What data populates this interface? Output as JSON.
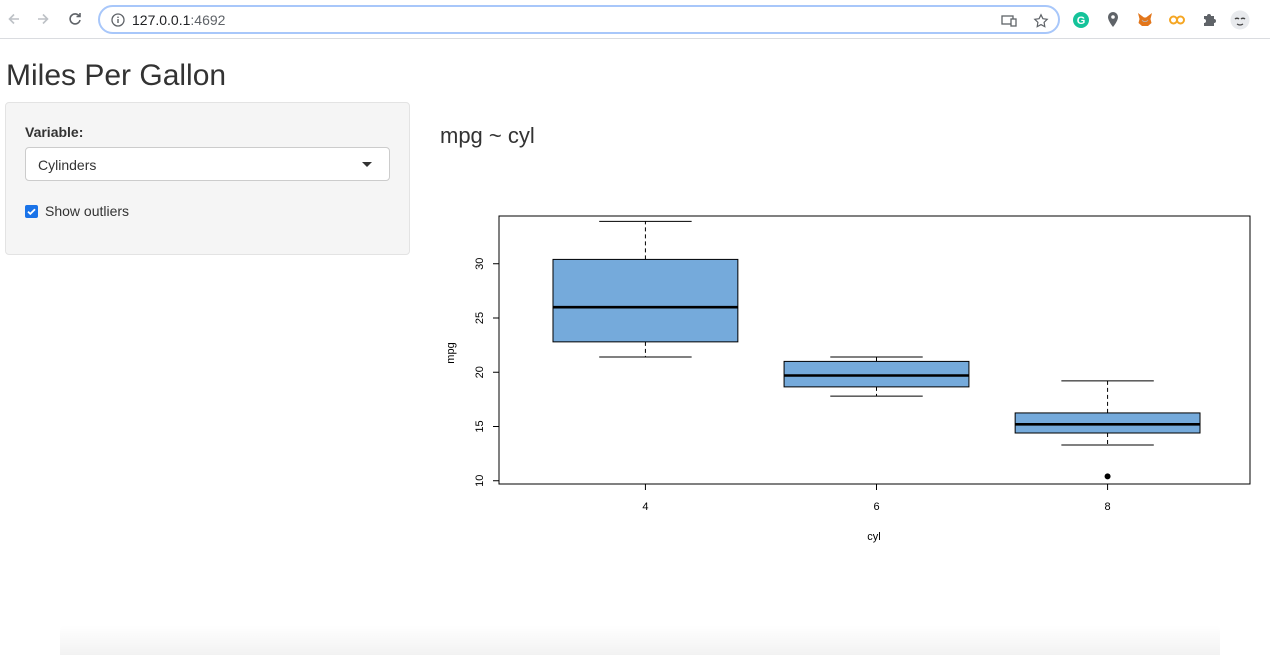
{
  "browser": {
    "url_host": "127.0.0.1",
    "url_port": ":4692",
    "extensions": [
      "grammarly-icon",
      "location-pin-icon",
      "metamask-icon",
      "link-extension-icon",
      "puzzle-icon",
      "profile-icon"
    ]
  },
  "page": {
    "title": "Miles Per Gallon"
  },
  "sidebar": {
    "variable_label": "Variable:",
    "variable_selected": "Cylinders",
    "outliers_label": "Show outliers",
    "outliers_checked": true
  },
  "main": {
    "plot_title": "mpg ~ cyl"
  },
  "chart_data": {
    "type": "boxplot",
    "xlabel": "cyl",
    "ylabel": "mpg",
    "categories": [
      "4",
      "6",
      "8"
    ],
    "yticks": [
      "10",
      "15",
      "20",
      "25",
      "30"
    ],
    "ylim": [
      10,
      34
    ],
    "box_color": "#75aadb",
    "boxes": [
      {
        "category": "4",
        "whisker_low": 21.4,
        "q1": 22.8,
        "median": 26.0,
        "q3": 30.4,
        "whisker_high": 33.9,
        "outliers": []
      },
      {
        "category": "6",
        "whisker_low": 17.8,
        "q1": 18.65,
        "median": 19.7,
        "q3": 21.0,
        "whisker_high": 21.4,
        "outliers": []
      },
      {
        "category": "8",
        "whisker_low": 13.3,
        "q1": 14.4,
        "median": 15.2,
        "q3": 16.25,
        "whisker_high": 19.2,
        "outliers": [
          10.4
        ]
      }
    ]
  }
}
